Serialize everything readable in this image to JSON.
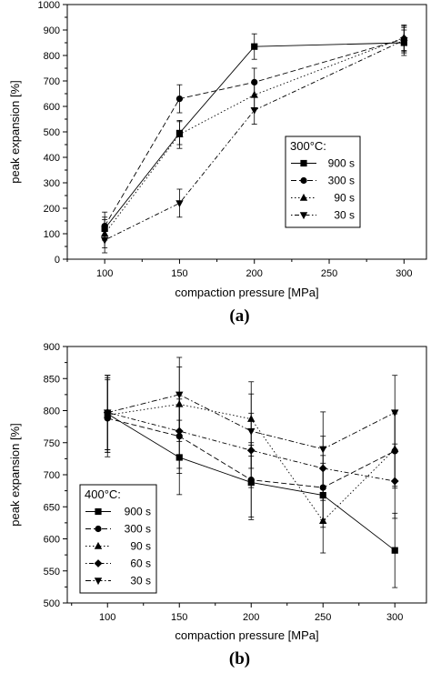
{
  "chart_data": [
    {
      "type": "line",
      "caption": "(a)",
      "xlabel": "compaction pressure [MPa]",
      "ylabel": "peak expansion [%]",
      "xlim": [
        75,
        315
      ],
      "ylim": [
        0,
        1000
      ],
      "xticks": [
        100,
        150,
        200,
        250,
        300
      ],
      "yticks": [
        0,
        100,
        200,
        300,
        400,
        500,
        600,
        700,
        800,
        900,
        1000
      ],
      "legend_title": "300°C:",
      "legend_position": "right",
      "series": [
        {
          "name": "900 s",
          "marker": "square",
          "dash": "solid",
          "x": [
            100,
            150,
            200,
            300
          ],
          "y": [
            120,
            495,
            835,
            850
          ],
          "err": [
            45,
            45,
            50,
            50
          ]
        },
        {
          "name": "300 s",
          "marker": "circle",
          "dash": "dashed",
          "x": [
            100,
            150,
            200,
            300
          ],
          "y": [
            130,
            630,
            695,
            865
          ],
          "err": [
            55,
            55,
            55,
            50
          ]
        },
        {
          "name": "90 s",
          "marker": "triangle-up",
          "dash": "dotted",
          "x": [
            100,
            150,
            200,
            300
          ],
          "y": [
            100,
            490,
            645,
            870
          ],
          "err": [
            55,
            55,
            55,
            50
          ]
        },
        {
          "name": "30 s",
          "marker": "triangle-down",
          "dash": "dotdash",
          "x": [
            100,
            150,
            200,
            300
          ],
          "y": [
            75,
            220,
            585,
            860
          ],
          "err": [
            50,
            55,
            55,
            50
          ]
        }
      ]
    },
    {
      "type": "line",
      "caption": "(b)",
      "xlabel": "compaction pressure [MPa]",
      "ylabel": "peak expansion [%]",
      "xlim": [
        72,
        322
      ],
      "ylim": [
        500,
        900
      ],
      "xticks": [
        100,
        150,
        200,
        250,
        300
      ],
      "yticks": [
        500,
        550,
        600,
        650,
        700,
        750,
        800,
        850,
        900
      ],
      "legend_title": "400°C:",
      "legend_position": "bottom-left",
      "series": [
        {
          "name": "900 s",
          "marker": "square",
          "dash": "solid",
          "x": [
            100,
            150,
            200,
            250,
            300
          ],
          "y": [
            795,
            727,
            688,
            668,
            582
          ],
          "err": [
            60,
            58,
            58,
            50,
            58
          ]
        },
        {
          "name": "300 s",
          "marker": "circle",
          "dash": "dashed",
          "x": [
            100,
            150,
            200,
            250,
            300
          ],
          "y": [
            788,
            760,
            692,
            680,
            737
          ],
          "err": [
            60,
            58,
            58,
            50,
            58
          ]
        },
        {
          "name": "90 s",
          "marker": "triangle-up",
          "dash": "dotted",
          "x": [
            100,
            150,
            200,
            250,
            300
          ],
          "y": [
            793,
            810,
            787,
            628,
            740
          ],
          "err": [
            58,
            58,
            58,
            50,
            58
          ]
        },
        {
          "name": "60 s",
          "marker": "diamond",
          "dash": "dotdash",
          "x": [
            100,
            150,
            200,
            250,
            300
          ],
          "y": [
            797,
            768,
            738,
            710,
            690
          ],
          "err": [
            58,
            58,
            58,
            50,
            58
          ]
        },
        {
          "name": "30 s",
          "marker": "triangle-down",
          "dash": "dashdot",
          "x": [
            100,
            150,
            200,
            250,
            300
          ],
          "y": [
            797,
            825,
            768,
            740,
            797
          ],
          "err": [
            58,
            58,
            58,
            58,
            58
          ]
        }
      ]
    }
  ]
}
